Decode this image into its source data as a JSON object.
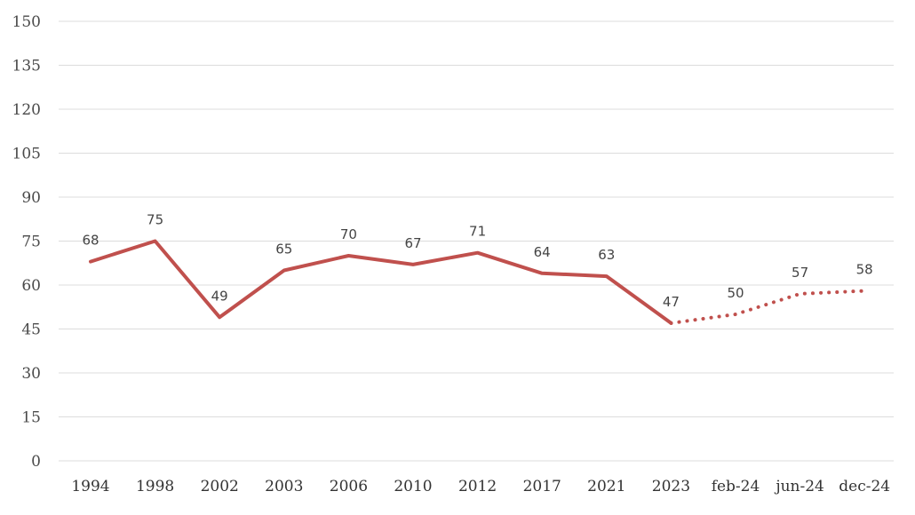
{
  "chart_data": {
    "type": "line",
    "title": "",
    "xlabel": "",
    "ylabel": "",
    "ylim": [
      0,
      150
    ],
    "yticks": [
      0,
      15,
      30,
      45,
      60,
      75,
      90,
      105,
      120,
      135,
      150
    ],
    "grid": true,
    "legend": "none",
    "categories": [
      "1994",
      "1998",
      "2002",
      "2003",
      "2006",
      "2010",
      "2012",
      "2017",
      "2021",
      "2023",
      "feb-24",
      "jun-24",
      "dec-24"
    ],
    "series": [
      {
        "values": [
          68,
          75,
          49,
          65,
          70,
          67,
          71,
          64,
          63,
          47,
          50,
          57,
          58
        ],
        "solid_until_index": 9,
        "color": "#c0504d"
      }
    ],
    "colors": {
      "line": "#c0504d",
      "grid": "#dcdcdc",
      "text": "#444444"
    }
  }
}
